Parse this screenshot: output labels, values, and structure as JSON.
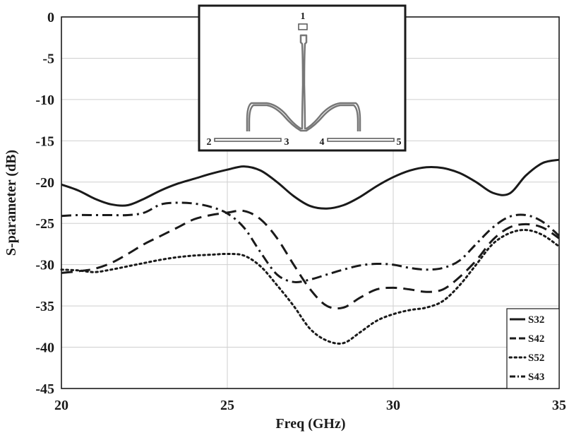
{
  "chart_data": {
    "type": "line",
    "title": "",
    "xlabel": "Freq (GHz)",
    "ylabel": "S-parameter (dB)",
    "xlim": [
      20,
      35
    ],
    "ylim": [
      -45,
      0
    ],
    "xticks": [
      20,
      25,
      30,
      35
    ],
    "yticks": [
      0,
      -5,
      -10,
      -15,
      -20,
      -25,
      -30,
      -35,
      -40,
      -45
    ],
    "grid": true,
    "legend_position": "bottom-right",
    "series": [
      {
        "name": "S32",
        "style": "solid",
        "x": [
          20,
          20.5,
          21,
          21.5,
          22,
          22.5,
          23,
          23.5,
          24,
          24.5,
          25,
          25.5,
          26,
          26.5,
          27,
          27.5,
          28,
          28.5,
          29,
          29.5,
          30,
          30.5,
          31,
          31.5,
          32,
          32.5,
          33,
          33.5,
          34,
          34.5,
          35
        ],
        "y": [
          -20.3,
          -21.0,
          -22.0,
          -22.7,
          -22.8,
          -22.0,
          -21.0,
          -20.2,
          -19.6,
          -19.0,
          -18.5,
          -18.1,
          -18.6,
          -20.0,
          -21.7,
          -22.9,
          -23.2,
          -22.8,
          -21.8,
          -20.5,
          -19.4,
          -18.6,
          -18.2,
          -18.3,
          -18.9,
          -20.0,
          -21.3,
          -21.4,
          -19.2,
          -17.7,
          -17.3
        ]
      },
      {
        "name": "S42",
        "style": "dashed",
        "x": [
          20,
          20.5,
          21,
          21.5,
          22,
          22.5,
          23,
          23.5,
          24,
          24.5,
          25,
          25.5,
          26,
          26.5,
          27,
          27.5,
          28,
          28.5,
          29,
          29.5,
          30,
          30.5,
          31,
          31.5,
          32,
          32.5,
          33,
          33.5,
          34,
          34.5,
          35
        ],
        "y": [
          -31.0,
          -30.8,
          -30.5,
          -29.8,
          -28.7,
          -27.5,
          -26.5,
          -25.5,
          -24.5,
          -24.0,
          -23.7,
          -23.5,
          -24.5,
          -26.8,
          -30.0,
          -33.0,
          -35.0,
          -35.2,
          -34.0,
          -33.0,
          -32.8,
          -33.0,
          -33.3,
          -33.0,
          -31.5,
          -29.5,
          -27.0,
          -25.5,
          -25.1,
          -25.5,
          -26.8
        ]
      },
      {
        "name": "S52",
        "style": "dotted",
        "x": [
          20,
          20.5,
          21,
          21.5,
          22,
          22.5,
          23,
          23.5,
          24,
          24.5,
          25,
          25.5,
          26,
          26.5,
          27,
          27.5,
          28,
          28.5,
          29,
          29.5,
          30,
          30.5,
          31,
          31.5,
          32,
          32.5,
          33,
          33.5,
          34,
          34.5,
          35
        ],
        "y": [
          -30.6,
          -30.7,
          -30.9,
          -30.6,
          -30.2,
          -29.8,
          -29.4,
          -29.1,
          -28.9,
          -28.8,
          -28.7,
          -28.9,
          -30.2,
          -32.5,
          -35.0,
          -37.8,
          -39.2,
          -39.5,
          -38.2,
          -36.8,
          -36.0,
          -35.5,
          -35.2,
          -34.4,
          -32.5,
          -30.0,
          -27.5,
          -26.2,
          -25.8,
          -26.4,
          -27.8
        ]
      },
      {
        "name": "S43",
        "style": "dashdot",
        "x": [
          20,
          20.5,
          21,
          21.5,
          22,
          22.5,
          23,
          23.5,
          24,
          24.5,
          25,
          25.5,
          26,
          26.5,
          27,
          27.5,
          28,
          28.5,
          29,
          29.5,
          30,
          30.5,
          31,
          31.5,
          32,
          32.5,
          33,
          33.5,
          34,
          34.5,
          35
        ],
        "y": [
          -24.1,
          -24.0,
          -24.0,
          -24.0,
          -24.0,
          -23.7,
          -22.7,
          -22.5,
          -22.6,
          -23.0,
          -23.8,
          -25.5,
          -28.5,
          -31.2,
          -32.1,
          -31.8,
          -31.2,
          -30.6,
          -30.1,
          -29.9,
          -30.0,
          -30.4,
          -30.6,
          -30.4,
          -29.5,
          -27.5,
          -25.5,
          -24.2,
          -24.0,
          -24.8,
          -26.5
        ]
      }
    ],
    "inset": {
      "port_labels": [
        "1",
        "2",
        "3",
        "4",
        "5"
      ]
    }
  }
}
